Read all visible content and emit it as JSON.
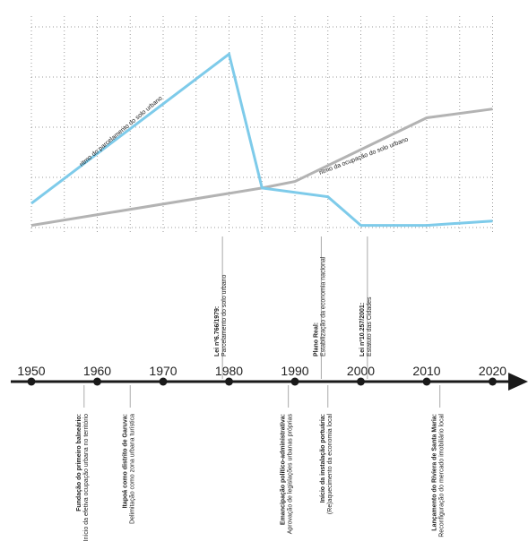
{
  "chart_data": {
    "type": "line",
    "x_range": [
      1950,
      2020
    ],
    "y_range": [
      0,
      100
    ],
    "grid": true,
    "series": [
      {
        "name": "ritmo do parcelamento do solo urbano",
        "color": "#7ecbea",
        "points": [
          [
            1950,
            11
          ],
          [
            1980,
            79
          ],
          [
            1985,
            18
          ],
          [
            1995,
            14
          ],
          [
            2000,
            1
          ],
          [
            2010,
            1
          ],
          [
            2020,
            3
          ]
        ]
      },
      {
        "name": "ritmo da ocupação do solo urbano",
        "color": "#b3b3b3",
        "points": [
          [
            1950,
            1
          ],
          [
            1985,
            18
          ],
          [
            1990,
            21
          ],
          [
            2010,
            50
          ],
          [
            2020,
            54
          ]
        ]
      }
    ],
    "timeline": {
      "years": [
        "1950",
        "1960",
        "1970",
        "1980",
        "1990",
        "2000",
        "2010",
        "2020"
      ],
      "events_above": [
        {
          "year": 1979,
          "title": "Lei nº6.766/1979:",
          "desc": "Parcelamento do solo urbano"
        },
        {
          "year": 1994,
          "title": "Plano Real:",
          "desc": "Estabilização da economia nacional"
        },
        {
          "year": 2001,
          "title": "Lei nº10.257/2001:",
          "desc": "Estatuto das Cidades"
        }
      ],
      "events_below": [
        {
          "year": 1958,
          "title": "Fundação do primeiro balneário:",
          "desc": "Início da efetiva ocupação urbana no território"
        },
        {
          "year": 1965,
          "title": "Itapoá como distrito de Garuva:",
          "desc": "Delimitação como zona urbana turística"
        },
        {
          "year": 1989,
          "title": "Emancipação político-administrativa:",
          "desc": "Aprovação de legislações urbanas próprias"
        },
        {
          "year": 1995,
          "title": "Início da instalação portuária:",
          "desc": "(Re)aquecimento da economia local"
        },
        {
          "year": 2012,
          "title": "Lançamento do Riviera de Santa Maria:",
          "desc": "Reconfiguração do mercado imobiliário local"
        }
      ]
    }
  }
}
